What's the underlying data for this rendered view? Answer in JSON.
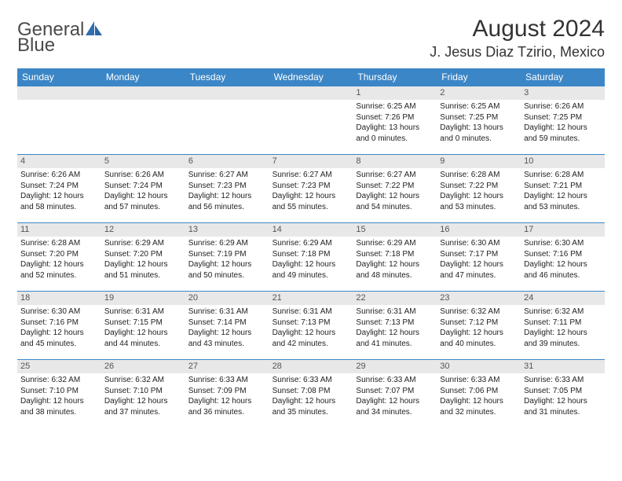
{
  "logo": {
    "word1": "General",
    "word2": "Blue"
  },
  "title": "August 2024",
  "location": "J. Jesus Diaz Tzirio, Mexico",
  "colors": {
    "header_bar": "#3b86c6",
    "day_num_bg": "#e8e8e8",
    "week_divider": "#3b86c6",
    "logo_accent": "#2f6fb0"
  },
  "weekdays": [
    "Sunday",
    "Monday",
    "Tuesday",
    "Wednesday",
    "Thursday",
    "Friday",
    "Saturday"
  ],
  "weeks": [
    [
      {
        "n": "",
        "sunrise": "",
        "sunset": "",
        "daylight": ""
      },
      {
        "n": "",
        "sunrise": "",
        "sunset": "",
        "daylight": ""
      },
      {
        "n": "",
        "sunrise": "",
        "sunset": "",
        "daylight": ""
      },
      {
        "n": "",
        "sunrise": "",
        "sunset": "",
        "daylight": ""
      },
      {
        "n": "1",
        "sunrise": "Sunrise: 6:25 AM",
        "sunset": "Sunset: 7:26 PM",
        "daylight": "Daylight: 13 hours and 0 minutes."
      },
      {
        "n": "2",
        "sunrise": "Sunrise: 6:25 AM",
        "sunset": "Sunset: 7:25 PM",
        "daylight": "Daylight: 13 hours and 0 minutes."
      },
      {
        "n": "3",
        "sunrise": "Sunrise: 6:26 AM",
        "sunset": "Sunset: 7:25 PM",
        "daylight": "Daylight: 12 hours and 59 minutes."
      }
    ],
    [
      {
        "n": "4",
        "sunrise": "Sunrise: 6:26 AM",
        "sunset": "Sunset: 7:24 PM",
        "daylight": "Daylight: 12 hours and 58 minutes."
      },
      {
        "n": "5",
        "sunrise": "Sunrise: 6:26 AM",
        "sunset": "Sunset: 7:24 PM",
        "daylight": "Daylight: 12 hours and 57 minutes."
      },
      {
        "n": "6",
        "sunrise": "Sunrise: 6:27 AM",
        "sunset": "Sunset: 7:23 PM",
        "daylight": "Daylight: 12 hours and 56 minutes."
      },
      {
        "n": "7",
        "sunrise": "Sunrise: 6:27 AM",
        "sunset": "Sunset: 7:23 PM",
        "daylight": "Daylight: 12 hours and 55 minutes."
      },
      {
        "n": "8",
        "sunrise": "Sunrise: 6:27 AM",
        "sunset": "Sunset: 7:22 PM",
        "daylight": "Daylight: 12 hours and 54 minutes."
      },
      {
        "n": "9",
        "sunrise": "Sunrise: 6:28 AM",
        "sunset": "Sunset: 7:22 PM",
        "daylight": "Daylight: 12 hours and 53 minutes."
      },
      {
        "n": "10",
        "sunrise": "Sunrise: 6:28 AM",
        "sunset": "Sunset: 7:21 PM",
        "daylight": "Daylight: 12 hours and 53 minutes."
      }
    ],
    [
      {
        "n": "11",
        "sunrise": "Sunrise: 6:28 AM",
        "sunset": "Sunset: 7:20 PM",
        "daylight": "Daylight: 12 hours and 52 minutes."
      },
      {
        "n": "12",
        "sunrise": "Sunrise: 6:29 AM",
        "sunset": "Sunset: 7:20 PM",
        "daylight": "Daylight: 12 hours and 51 minutes."
      },
      {
        "n": "13",
        "sunrise": "Sunrise: 6:29 AM",
        "sunset": "Sunset: 7:19 PM",
        "daylight": "Daylight: 12 hours and 50 minutes."
      },
      {
        "n": "14",
        "sunrise": "Sunrise: 6:29 AM",
        "sunset": "Sunset: 7:18 PM",
        "daylight": "Daylight: 12 hours and 49 minutes."
      },
      {
        "n": "15",
        "sunrise": "Sunrise: 6:29 AM",
        "sunset": "Sunset: 7:18 PM",
        "daylight": "Daylight: 12 hours and 48 minutes."
      },
      {
        "n": "16",
        "sunrise": "Sunrise: 6:30 AM",
        "sunset": "Sunset: 7:17 PM",
        "daylight": "Daylight: 12 hours and 47 minutes."
      },
      {
        "n": "17",
        "sunrise": "Sunrise: 6:30 AM",
        "sunset": "Sunset: 7:16 PM",
        "daylight": "Daylight: 12 hours and 46 minutes."
      }
    ],
    [
      {
        "n": "18",
        "sunrise": "Sunrise: 6:30 AM",
        "sunset": "Sunset: 7:16 PM",
        "daylight": "Daylight: 12 hours and 45 minutes."
      },
      {
        "n": "19",
        "sunrise": "Sunrise: 6:31 AM",
        "sunset": "Sunset: 7:15 PM",
        "daylight": "Daylight: 12 hours and 44 minutes."
      },
      {
        "n": "20",
        "sunrise": "Sunrise: 6:31 AM",
        "sunset": "Sunset: 7:14 PM",
        "daylight": "Daylight: 12 hours and 43 minutes."
      },
      {
        "n": "21",
        "sunrise": "Sunrise: 6:31 AM",
        "sunset": "Sunset: 7:13 PM",
        "daylight": "Daylight: 12 hours and 42 minutes."
      },
      {
        "n": "22",
        "sunrise": "Sunrise: 6:31 AM",
        "sunset": "Sunset: 7:13 PM",
        "daylight": "Daylight: 12 hours and 41 minutes."
      },
      {
        "n": "23",
        "sunrise": "Sunrise: 6:32 AM",
        "sunset": "Sunset: 7:12 PM",
        "daylight": "Daylight: 12 hours and 40 minutes."
      },
      {
        "n": "24",
        "sunrise": "Sunrise: 6:32 AM",
        "sunset": "Sunset: 7:11 PM",
        "daylight": "Daylight: 12 hours and 39 minutes."
      }
    ],
    [
      {
        "n": "25",
        "sunrise": "Sunrise: 6:32 AM",
        "sunset": "Sunset: 7:10 PM",
        "daylight": "Daylight: 12 hours and 38 minutes."
      },
      {
        "n": "26",
        "sunrise": "Sunrise: 6:32 AM",
        "sunset": "Sunset: 7:10 PM",
        "daylight": "Daylight: 12 hours and 37 minutes."
      },
      {
        "n": "27",
        "sunrise": "Sunrise: 6:33 AM",
        "sunset": "Sunset: 7:09 PM",
        "daylight": "Daylight: 12 hours and 36 minutes."
      },
      {
        "n": "28",
        "sunrise": "Sunrise: 6:33 AM",
        "sunset": "Sunset: 7:08 PM",
        "daylight": "Daylight: 12 hours and 35 minutes."
      },
      {
        "n": "29",
        "sunrise": "Sunrise: 6:33 AM",
        "sunset": "Sunset: 7:07 PM",
        "daylight": "Daylight: 12 hours and 34 minutes."
      },
      {
        "n": "30",
        "sunrise": "Sunrise: 6:33 AM",
        "sunset": "Sunset: 7:06 PM",
        "daylight": "Daylight: 12 hours and 32 minutes."
      },
      {
        "n": "31",
        "sunrise": "Sunrise: 6:33 AM",
        "sunset": "Sunset: 7:05 PM",
        "daylight": "Daylight: 12 hours and 31 minutes."
      }
    ]
  ]
}
